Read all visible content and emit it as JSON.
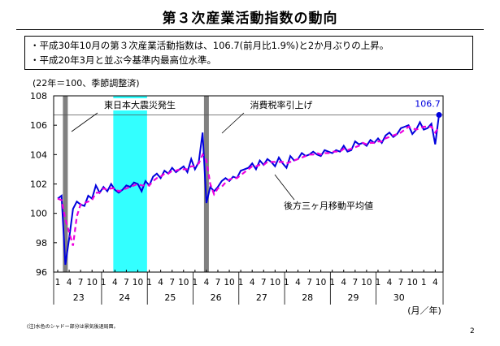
{
  "page": {
    "title": "第３次産業活動指数の動向",
    "notes": [
      "・平成30年10月の第３次産業活動指数は、106.7(前月比1.9%)と2か月ぶりの上昇。",
      "・平成20年3月と並ぶ今基準内最高位水準。"
    ],
    "unit_note": "(22年＝100、季節調整済)",
    "footnote": "(注)水色のシャドー部分は景気後退局面。",
    "page_number": "2"
  },
  "chart_data": {
    "type": "line",
    "ylim": [
      96,
      108
    ],
    "yticks": [
      96,
      98,
      100,
      102,
      104,
      106,
      108
    ],
    "xlabel": "(月／年)",
    "month_tick_labels": [
      "1",
      "4",
      "7",
      "10"
    ],
    "years": [
      "23",
      "24",
      "25",
      "26",
      "27",
      "28",
      "29",
      "30"
    ],
    "annotations": {
      "quake": "東日本大震災発生",
      "tax": "消費税率引上げ",
      "ma": "後方三ヶ月移動平均値",
      "last_value": "106.7"
    },
    "events": [
      {
        "name": "quake",
        "month_index": 2
      },
      {
        "name": "tax",
        "month_index": 39
      }
    ],
    "recession": {
      "start_index": 15,
      "end_index": 23
    },
    "reference_line": 106.7,
    "colors": {
      "index": "#0000dd",
      "ma": "#ee00dd",
      "recession": "#33ffff",
      "event": "#808080",
      "axis": "#000000"
    },
    "series": [
      {
        "key": "index",
        "values": [
          101.0,
          101.2,
          96.5,
          98.3,
          100.3,
          100.8,
          100.6,
          100.5,
          101.2,
          101.0,
          101.9,
          101.4,
          101.8,
          101.5,
          102.0,
          101.6,
          101.4,
          101.6,
          101.9,
          101.8,
          102.1,
          102.0,
          101.5,
          102.2,
          101.9,
          102.5,
          102.7,
          102.4,
          102.9,
          102.7,
          103.1,
          102.8,
          103.0,
          103.2,
          102.8,
          103.7,
          103.0,
          103.5,
          105.5,
          100.7,
          101.8,
          101.5,
          101.8,
          102.2,
          102.4,
          102.2,
          102.5,
          102.4,
          102.9,
          103.0,
          103.1,
          103.4,
          103.0,
          103.6,
          103.3,
          103.7,
          103.5,
          103.2,
          103.8,
          103.4,
          103.1,
          103.9,
          103.6,
          103.7,
          104.1,
          103.9,
          104.0,
          104.2,
          104.0,
          103.9,
          104.3,
          104.2,
          104.1,
          104.3,
          104.2,
          104.6,
          104.2,
          104.3,
          104.9,
          104.7,
          104.8,
          104.6,
          105.0,
          104.8,
          105.1,
          104.8,
          105.3,
          105.5,
          105.2,
          105.4,
          105.8,
          105.9,
          106.0,
          105.4,
          105.7,
          106.2,
          105.7,
          105.8,
          106.1,
          104.7,
          106.7
        ]
      },
      {
        "key": "ma",
        "values": [
          101.0,
          100.9,
          99.6,
          98.7,
          97.8,
          99.8,
          100.6,
          100.7,
          100.8,
          100.9,
          101.4,
          101.4,
          101.7,
          101.6,
          101.7,
          101.7,
          101.5,
          101.6,
          101.7,
          101.8,
          101.9,
          102.0,
          101.9,
          101.9,
          101.9,
          102.2,
          102.4,
          102.5,
          102.7,
          102.7,
          102.9,
          102.9,
          103.0,
          103.0,
          103.0,
          103.2,
          103.2,
          103.4,
          104.0,
          103.6,
          102.0,
          101.3,
          101.7,
          101.8,
          102.1,
          102.3,
          102.4,
          102.4,
          102.6,
          102.8,
          103.0,
          103.2,
          103.2,
          103.3,
          103.3,
          103.5,
          103.5,
          103.5,
          103.5,
          103.5,
          103.4,
          103.5,
          103.6,
          103.7,
          103.8,
          103.9,
          104.0,
          104.0,
          104.1,
          104.0,
          104.1,
          104.1,
          104.2,
          104.2,
          104.2,
          104.4,
          104.3,
          104.4,
          104.5,
          104.6,
          104.8,
          104.7,
          104.8,
          104.8,
          104.9,
          104.9,
          105.1,
          105.2,
          105.3,
          105.4,
          105.5,
          105.7,
          105.9,
          105.8,
          105.7,
          105.8,
          105.9,
          105.9,
          105.9,
          105.5,
          105.9
        ]
      }
    ]
  }
}
